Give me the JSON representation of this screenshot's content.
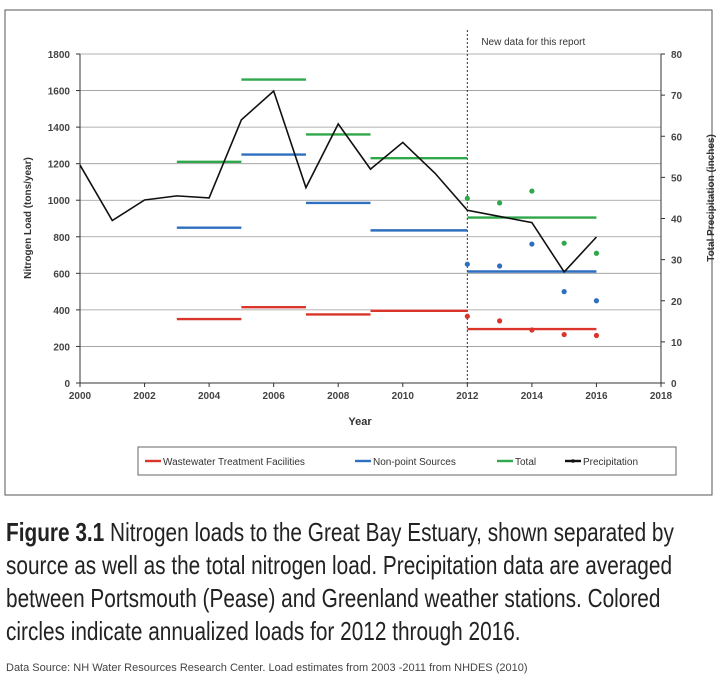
{
  "chart_data": {
    "type": "step-line",
    "annotation": {
      "text": "New data for this report",
      "x": 2012
    },
    "x_label": "Year",
    "y_label": "Nitrogen Load (tons/year)",
    "y2_label": "Total Precipitation (inches)",
    "xlim": [
      2000,
      2018
    ],
    "xticks": [
      2000,
      2002,
      2004,
      2006,
      2008,
      2010,
      2012,
      2014,
      2016,
      2018
    ],
    "ylim": [
      0,
      1800
    ],
    "yticks": [
      0,
      200,
      400,
      600,
      800,
      1000,
      1200,
      1400,
      1600,
      1800
    ],
    "y2lim": [
      0,
      80
    ],
    "y2ticks": [
      0,
      10,
      20,
      30,
      40,
      50,
      60,
      70,
      80
    ],
    "grid": true,
    "series": [
      {
        "name": "Wastewater Treatment Facilities",
        "color": "#d9352b",
        "x_start": [
          2003,
          2005,
          2007,
          2009,
          2012
        ],
        "x_end": [
          2005,
          2007,
          2009,
          2012,
          2016
        ],
        "values": [
          350,
          415,
          375,
          395,
          295
        ],
        "annual_x": [
          2012,
          2013,
          2014,
          2015,
          2016
        ],
        "annual_values": [
          365,
          340,
          290,
          265,
          260
        ]
      },
      {
        "name": "Non-point Sources",
        "color": "#2f6fc0",
        "x_start": [
          2003,
          2005,
          2007,
          2009,
          2012
        ],
        "x_end": [
          2005,
          2007,
          2009,
          2012,
          2016
        ],
        "values": [
          850,
          1250,
          985,
          835,
          610
        ],
        "annual_x": [
          2012,
          2013,
          2014,
          2015,
          2016
        ],
        "annual_values": [
          650,
          640,
          760,
          500,
          450
        ]
      },
      {
        "name": "Total",
        "color": "#2ea84a",
        "x_start": [
          2003,
          2005,
          2007,
          2009,
          2012
        ],
        "x_end": [
          2005,
          2007,
          2009,
          2012,
          2016
        ],
        "values": [
          1210,
          1660,
          1360,
          1230,
          905
        ],
        "annual_x": [
          2012,
          2013,
          2014,
          2015,
          2016
        ],
        "annual_values": [
          1010,
          985,
          1050,
          765,
          710
        ]
      },
      {
        "name": "Precipitation",
        "color": "#111111",
        "axis": "y2",
        "x": [
          2000,
          2001,
          2002,
          2003,
          2004,
          2005,
          2006,
          2007,
          2008,
          2009,
          2010,
          2011,
          2012,
          2013,
          2014,
          2015,
          2016
        ],
        "values": [
          53,
          39.5,
          44.5,
          45.5,
          45,
          64,
          71,
          47.5,
          63,
          52,
          58.5,
          51,
          42,
          40.5,
          39,
          27,
          35.5
        ]
      }
    ]
  },
  "caption": {
    "label": "Figure 3.1",
    "text": "Nitrogen loads to the Great Bay Estuary, shown separated by source as well as the total nitrogen load. Precipitation data are averaged between Portsmouth (Pease) and Greenland weather stations. Colored circles indicate annualized loads for 2012 through 2016."
  },
  "source": "Data Source: NH Water Resources Research Center. Load estimates from 2003 -2011 from NHDES (2010)"
}
